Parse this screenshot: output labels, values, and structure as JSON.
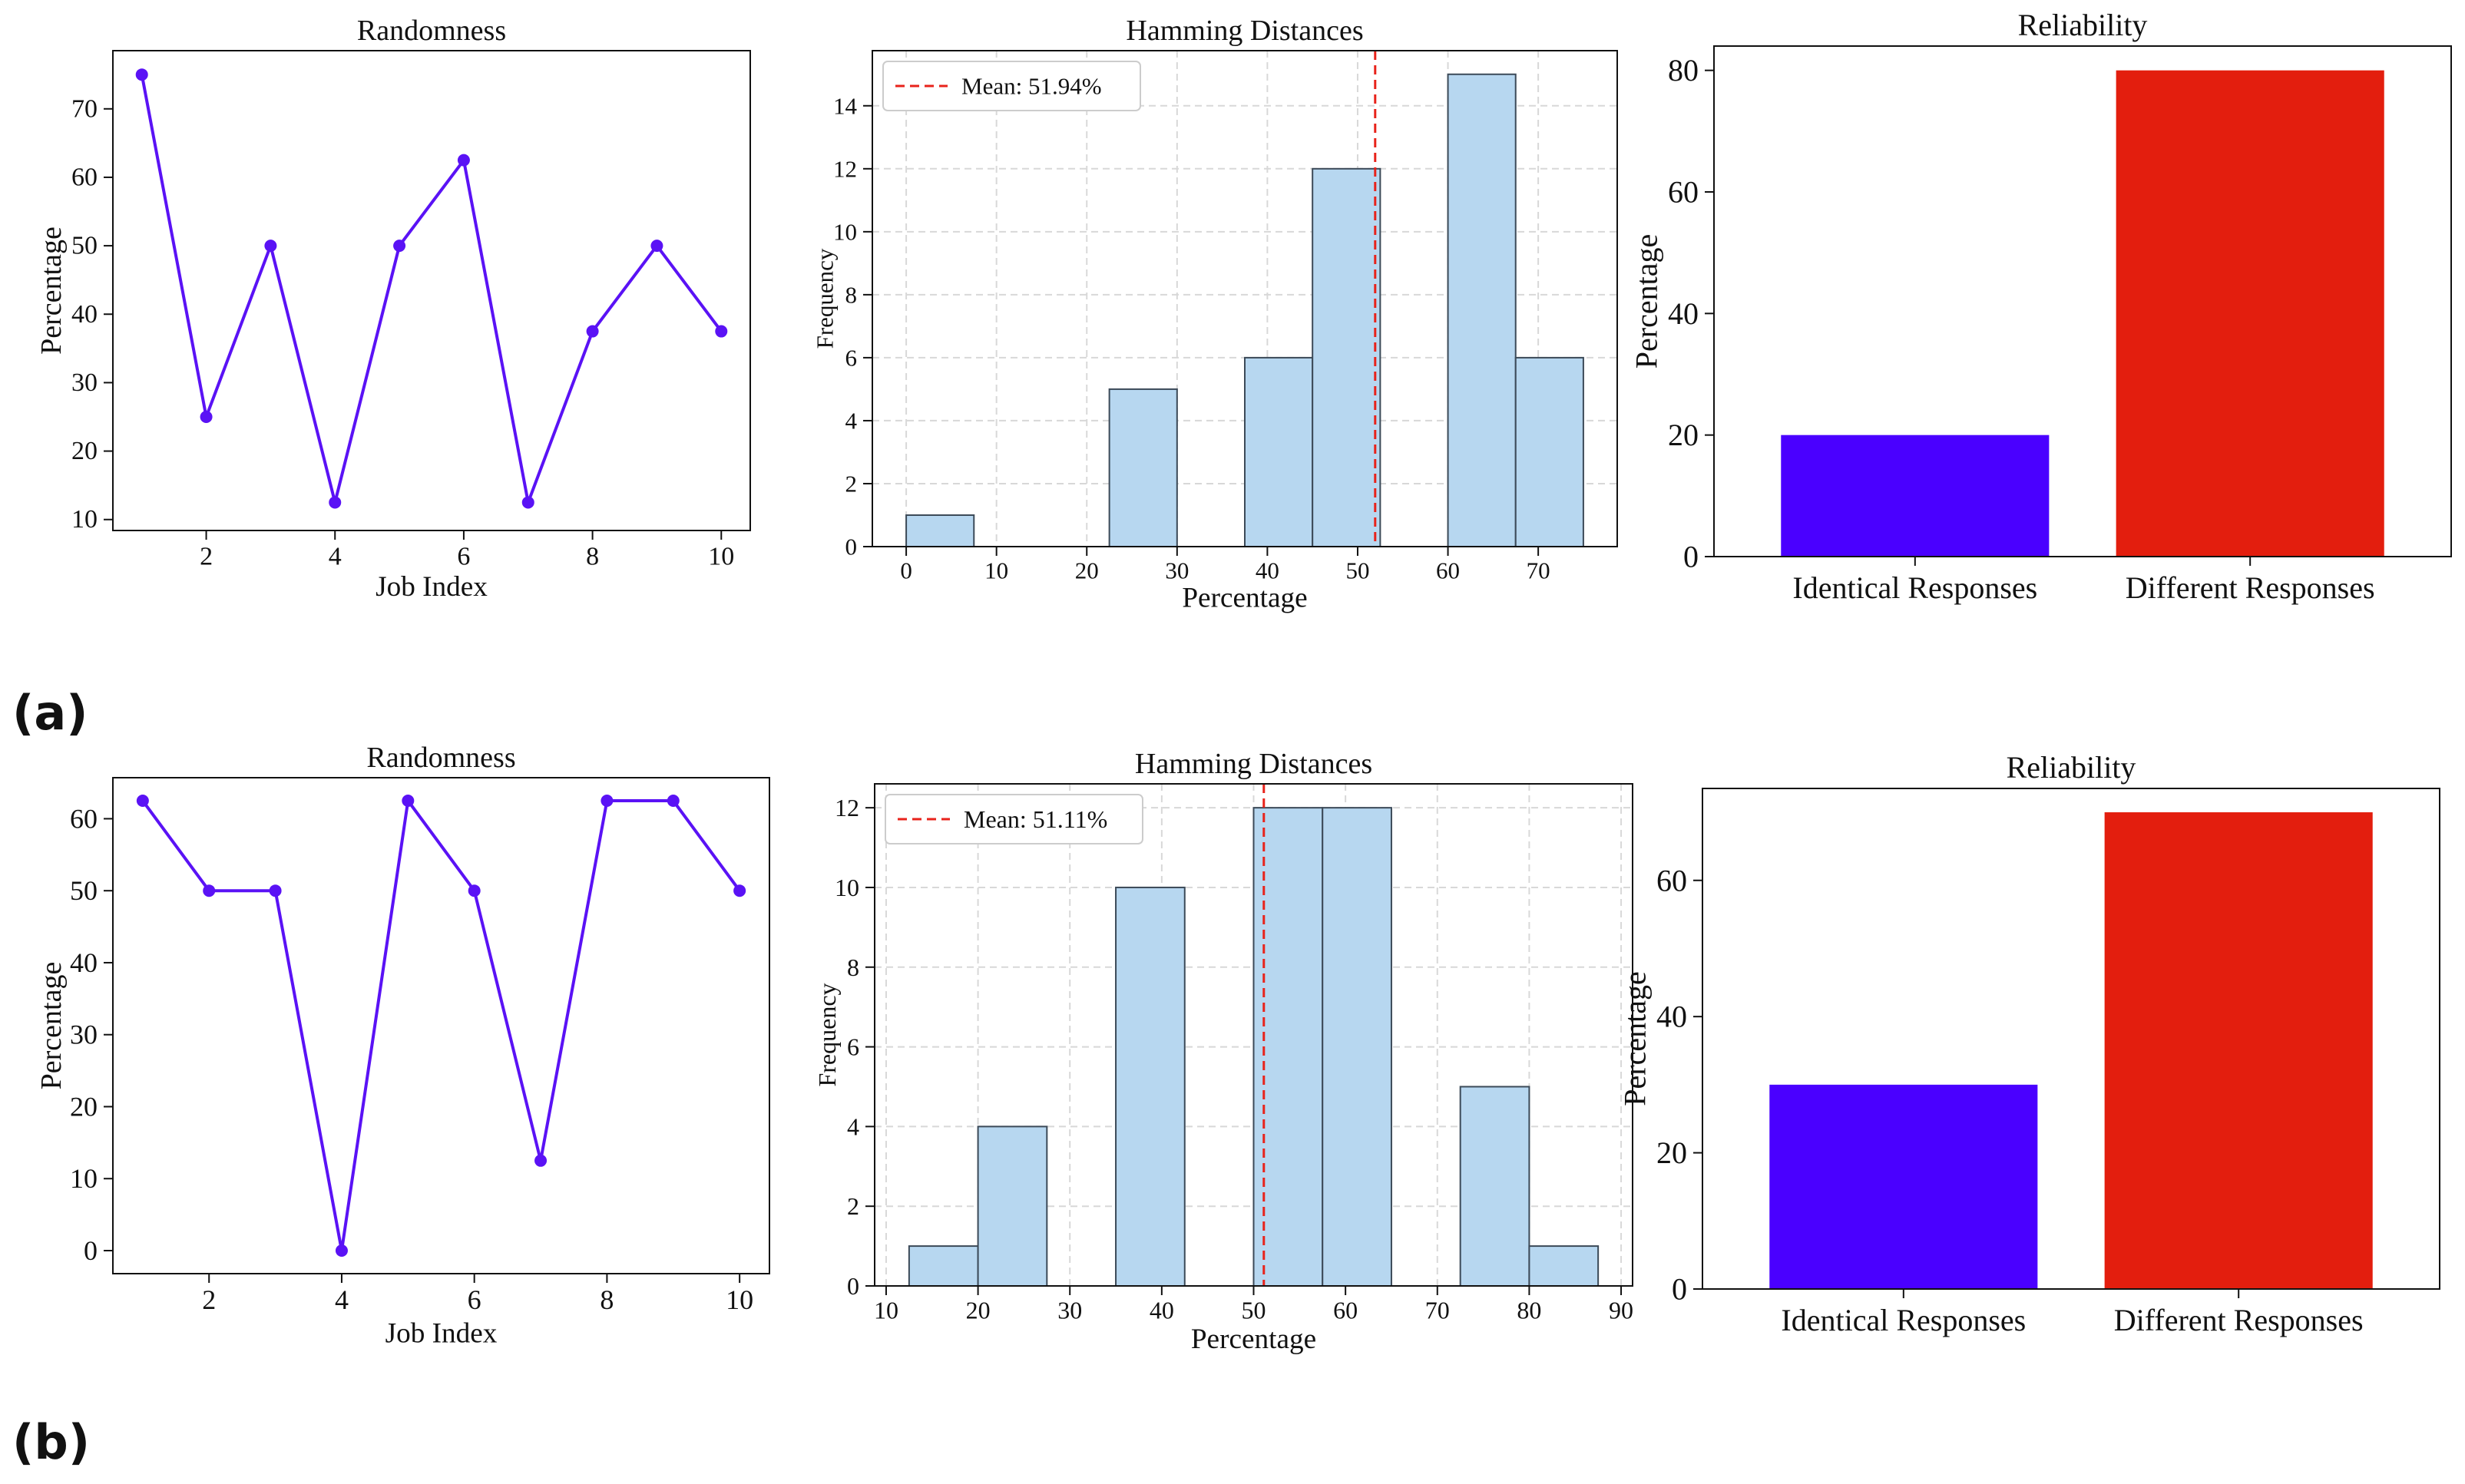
{
  "figure": {
    "panel_labels": [
      "(a)",
      "(b)"
    ]
  },
  "colors": {
    "line": "#5a12f5",
    "hist_fill": "#b7d7f0",
    "hist_edge": "#3c4a58",
    "mean_line": "#e8231b",
    "bar_identical": "#4a00ff",
    "bar_different": "#e31e0e",
    "grid": "#d8d8d8"
  },
  "chart_data": [
    {
      "id": "a-randomness",
      "type": "line",
      "title": "Randomness",
      "xlabel": "Job Index",
      "ylabel": "Percentage",
      "x": [
        1,
        2,
        3,
        4,
        5,
        6,
        7,
        8,
        9,
        10
      ],
      "values": [
        75,
        25,
        50,
        12.5,
        50,
        62.5,
        12.5,
        37.5,
        50,
        37.5
      ],
      "xlim": [
        0.55,
        10.45
      ],
      "ylim": [
        8.4,
        78.5
      ],
      "xticks": [
        2,
        4,
        6,
        8,
        10
      ],
      "yticks": [
        10,
        20,
        30,
        40,
        50,
        60,
        70
      ],
      "grid": false
    },
    {
      "id": "a-hamming",
      "type": "histogram",
      "title": "Hamming Distances",
      "xlabel": "Percentage",
      "ylabel": "Frequency",
      "bins": [
        {
          "from": 0,
          "to": 7.5,
          "count": 1
        },
        {
          "from": 22.5,
          "to": 30,
          "count": 5
        },
        {
          "from": 37.5,
          "to": 45,
          "count": 6
        },
        {
          "from": 45,
          "to": 52.5,
          "count": 12
        },
        {
          "from": 60,
          "to": 67.5,
          "count": 15
        },
        {
          "from": 67.5,
          "to": 75,
          "count": 6
        }
      ],
      "mean": 51.94,
      "legend": "Mean: 51.94%",
      "xlim": [
        -3.75,
        78.75
      ],
      "ylim": [
        0,
        15.75
      ],
      "xticks": [
        0,
        10,
        20,
        30,
        40,
        50,
        60,
        70
      ],
      "yticks": [
        0,
        2,
        4,
        6,
        8,
        10,
        12,
        14
      ],
      "grid": true,
      "legend_position": "top-left"
    },
    {
      "id": "a-reliability",
      "type": "bar",
      "title": "Reliability",
      "xlabel": "",
      "ylabel": "Percentage",
      "categories": [
        "Identical Responses",
        "Different Responses"
      ],
      "values": [
        20,
        80
      ],
      "ylim": [
        0,
        84
      ],
      "yticks": [
        0,
        20,
        40,
        60,
        80
      ],
      "grid": false
    },
    {
      "id": "b-randomness",
      "type": "line",
      "title": "Randomness",
      "xlabel": "Job Index",
      "ylabel": "Percentage",
      "x": [
        1,
        2,
        3,
        4,
        5,
        6,
        7,
        8,
        9,
        10
      ],
      "values": [
        62.5,
        50,
        50,
        0,
        62.5,
        50,
        12.5,
        62.5,
        62.5,
        50
      ],
      "xlim": [
        0.55,
        10.45
      ],
      "ylim": [
        -3.2,
        65.7
      ],
      "xticks": [
        2,
        4,
        6,
        8,
        10
      ],
      "yticks": [
        0,
        10,
        20,
        30,
        40,
        50,
        60
      ],
      "grid": false
    },
    {
      "id": "b-hamming",
      "type": "histogram",
      "title": "Hamming Distances",
      "xlabel": "Percentage",
      "ylabel": "Frequency",
      "bins": [
        {
          "from": 12.5,
          "to": 20,
          "count": 1
        },
        {
          "from": 20,
          "to": 27.5,
          "count": 4
        },
        {
          "from": 35,
          "to": 42.5,
          "count": 10
        },
        {
          "from": 50,
          "to": 57.5,
          "count": 12
        },
        {
          "from": 57.5,
          "to": 65,
          "count": 12
        },
        {
          "from": 72.5,
          "to": 80,
          "count": 5
        },
        {
          "from": 80,
          "to": 87.5,
          "count": 1
        }
      ],
      "mean": 51.11,
      "legend": "Mean: 51.11%",
      "xlim": [
        8.75,
        91.25
      ],
      "ylim": [
        0,
        12.6
      ],
      "xticks": [
        10,
        20,
        30,
        40,
        50,
        60,
        70,
        80,
        90
      ],
      "yticks": [
        0,
        2,
        4,
        6,
        8,
        10,
        12
      ],
      "grid": true,
      "legend_position": "top-left"
    },
    {
      "id": "b-reliability",
      "type": "bar",
      "title": "Reliability",
      "xlabel": "",
      "ylabel": "Percentage",
      "categories": [
        "Identical Responses",
        "Different Responses"
      ],
      "values": [
        30,
        70
      ],
      "ylim": [
        0,
        73.5
      ],
      "yticks": [
        0,
        20,
        40,
        60
      ],
      "grid": false
    }
  ]
}
